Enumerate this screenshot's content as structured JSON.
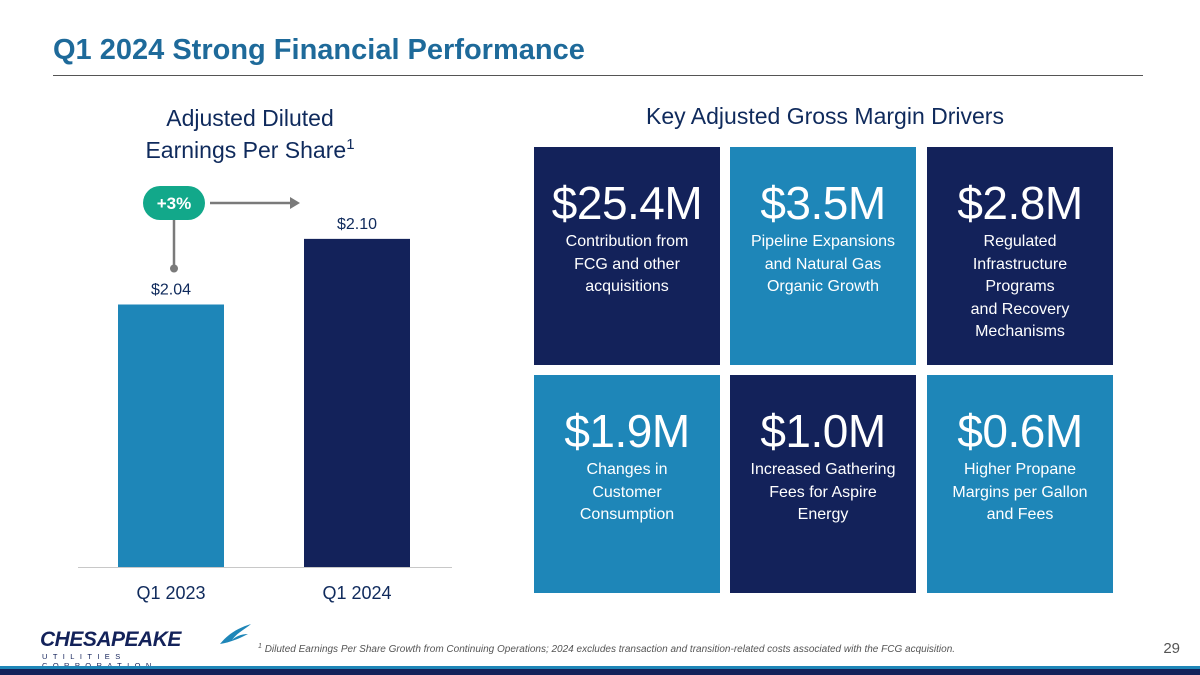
{
  "slide": {
    "title": "Q1 2024 Strong Financial Performance",
    "page_number": "29"
  },
  "eps": {
    "heading_line1": "Adjusted Diluted",
    "heading_line2": "Earnings Per Share",
    "heading_superscript": "1"
  },
  "chart_data": {
    "type": "bar",
    "title": "Adjusted Diluted Earnings Per Share",
    "categories": [
      "Q1 2023",
      "Q1 2024"
    ],
    "values": [
      2.04,
      2.1
    ],
    "value_labels": [
      "$2.04",
      "$2.10"
    ],
    "ylim": [
      1.8,
      2.12
    ],
    "xlabel": "",
    "ylabel": "",
    "grid": false,
    "annotation": {
      "label": "+3%",
      "from": "Q1 2023",
      "to": "Q1 2024"
    },
    "colors": {
      "Q1 2023": "#1e86b8",
      "Q1 2024": "#13225a"
    }
  },
  "drivers": {
    "heading": "Key Adjusted Gross Margin Drivers",
    "tiles": [
      {
        "amount": "$25.4M",
        "lines": [
          "Contribution from",
          "FCG and other",
          "acquisitions"
        ],
        "style": "dark"
      },
      {
        "amount": "$3.5M",
        "lines": [
          "Pipeline Expansions",
          "and Natural Gas",
          "Organic Growth"
        ],
        "style": "light"
      },
      {
        "amount": "$2.8M",
        "lines": [
          "Regulated",
          "Infrastructure",
          "Programs",
          "and Recovery",
          "Mechanisms"
        ],
        "style": "dark"
      },
      {
        "amount": "$1.9M",
        "lines": [
          "Changes in",
          "Customer",
          "Consumption"
        ],
        "style": "light"
      },
      {
        "amount": "$1.0M",
        "lines": [
          "Increased Gathering",
          "Fees for Aspire",
          "Energy"
        ],
        "style": "dark"
      },
      {
        "amount": "$0.6M",
        "lines": [
          "Higher Propane",
          "Margins per Gallon",
          "and Fees"
        ],
        "style": "light"
      }
    ]
  },
  "logo": {
    "wordmark": "CHESAPEAKE",
    "subline": "UTILITIES CORPORATION"
  },
  "footnote": {
    "marker": "1",
    "text": "Diluted Earnings Per Share Growth from Continuing Operations; 2024 excludes transaction and transition-related costs associated with the FCG acquisition."
  },
  "colors": {
    "title": "#1e6a9a",
    "navy": "#13225a",
    "blue": "#1e86b8",
    "badge": "#12a88a"
  }
}
